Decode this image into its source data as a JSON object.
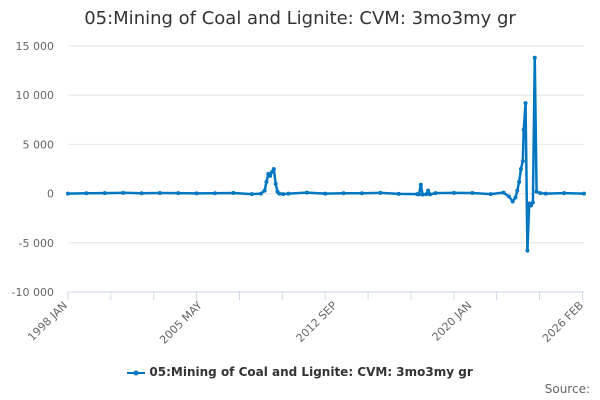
{
  "chart_data": {
    "type": "line",
    "title": "05:Mining of Coal and Lignite: CVM: 3mo3my gr",
    "xlabel": "",
    "ylabel": "",
    "ylim": [
      -10000,
      15000
    ],
    "yticks": [
      -10000,
      -5000,
      0,
      5000,
      10000,
      15000
    ],
    "ytick_labels": [
      "-10 000",
      "-5 000",
      "0",
      "5 000",
      "10 000",
      "15 000"
    ],
    "xlim": [
      1998.0,
      2026.08
    ],
    "xticks": [
      1998.0,
      2005.33,
      2012.67,
      2020.0,
      2026.08
    ],
    "xtick_labels": [
      "1998 JAN",
      "2005 MAY",
      "2012 SEP",
      "2020 JAN",
      "2026 FEB"
    ],
    "grid": true,
    "legend_position": "bottom",
    "series": [
      {
        "name": "05:Mining of Coal and Lignite: CVM: 3mo3my gr",
        "color": "#0077c0",
        "x": [
          1998,
          1999,
          2000,
          2001,
          2002,
          2003,
          2004,
          2005,
          2006,
          2007,
          2008,
          2008.5,
          2008.7,
          2008.8,
          2008.9,
          2009.0,
          2009.1,
          2009.2,
          2009.3,
          2009.4,
          2009.5,
          2009.7,
          2010,
          2011,
          2012,
          2013,
          2014,
          2015,
          2016,
          2017.0,
          2017.1,
          2017.2,
          2017.3,
          2017.5,
          2017.6,
          2017.7,
          2018,
          2019,
          2020,
          2021,
          2021.7,
          2022.0,
          2022.2,
          2022.35,
          2022.45,
          2022.55,
          2022.65,
          2022.75,
          2022.8,
          2022.9,
          2023.0,
          2023.1,
          2023.2,
          2023.3,
          2023.4,
          2023.5,
          2023.7,
          2024,
          2025,
          2026.08
        ],
        "y": [
          0,
          30,
          50,
          80,
          40,
          60,
          50,
          20,
          30,
          60,
          -50,
          0,
          300,
          1200,
          2000,
          1800,
          2200,
          2500,
          1000,
          200,
          0,
          -50,
          0,
          100,
          0,
          30,
          40,
          80,
          -30,
          -50,
          -80,
          900,
          -100,
          -50,
          300,
          -80,
          50,
          80,
          60,
          -50,
          100,
          -300,
          -800,
          -400,
          300,
          1200,
          2500,
          3300,
          6500,
          9200,
          -5800,
          -1000,
          -1200,
          -900,
          13800,
          200,
          50,
          0,
          50,
          0
        ]
      }
    ]
  }
}
